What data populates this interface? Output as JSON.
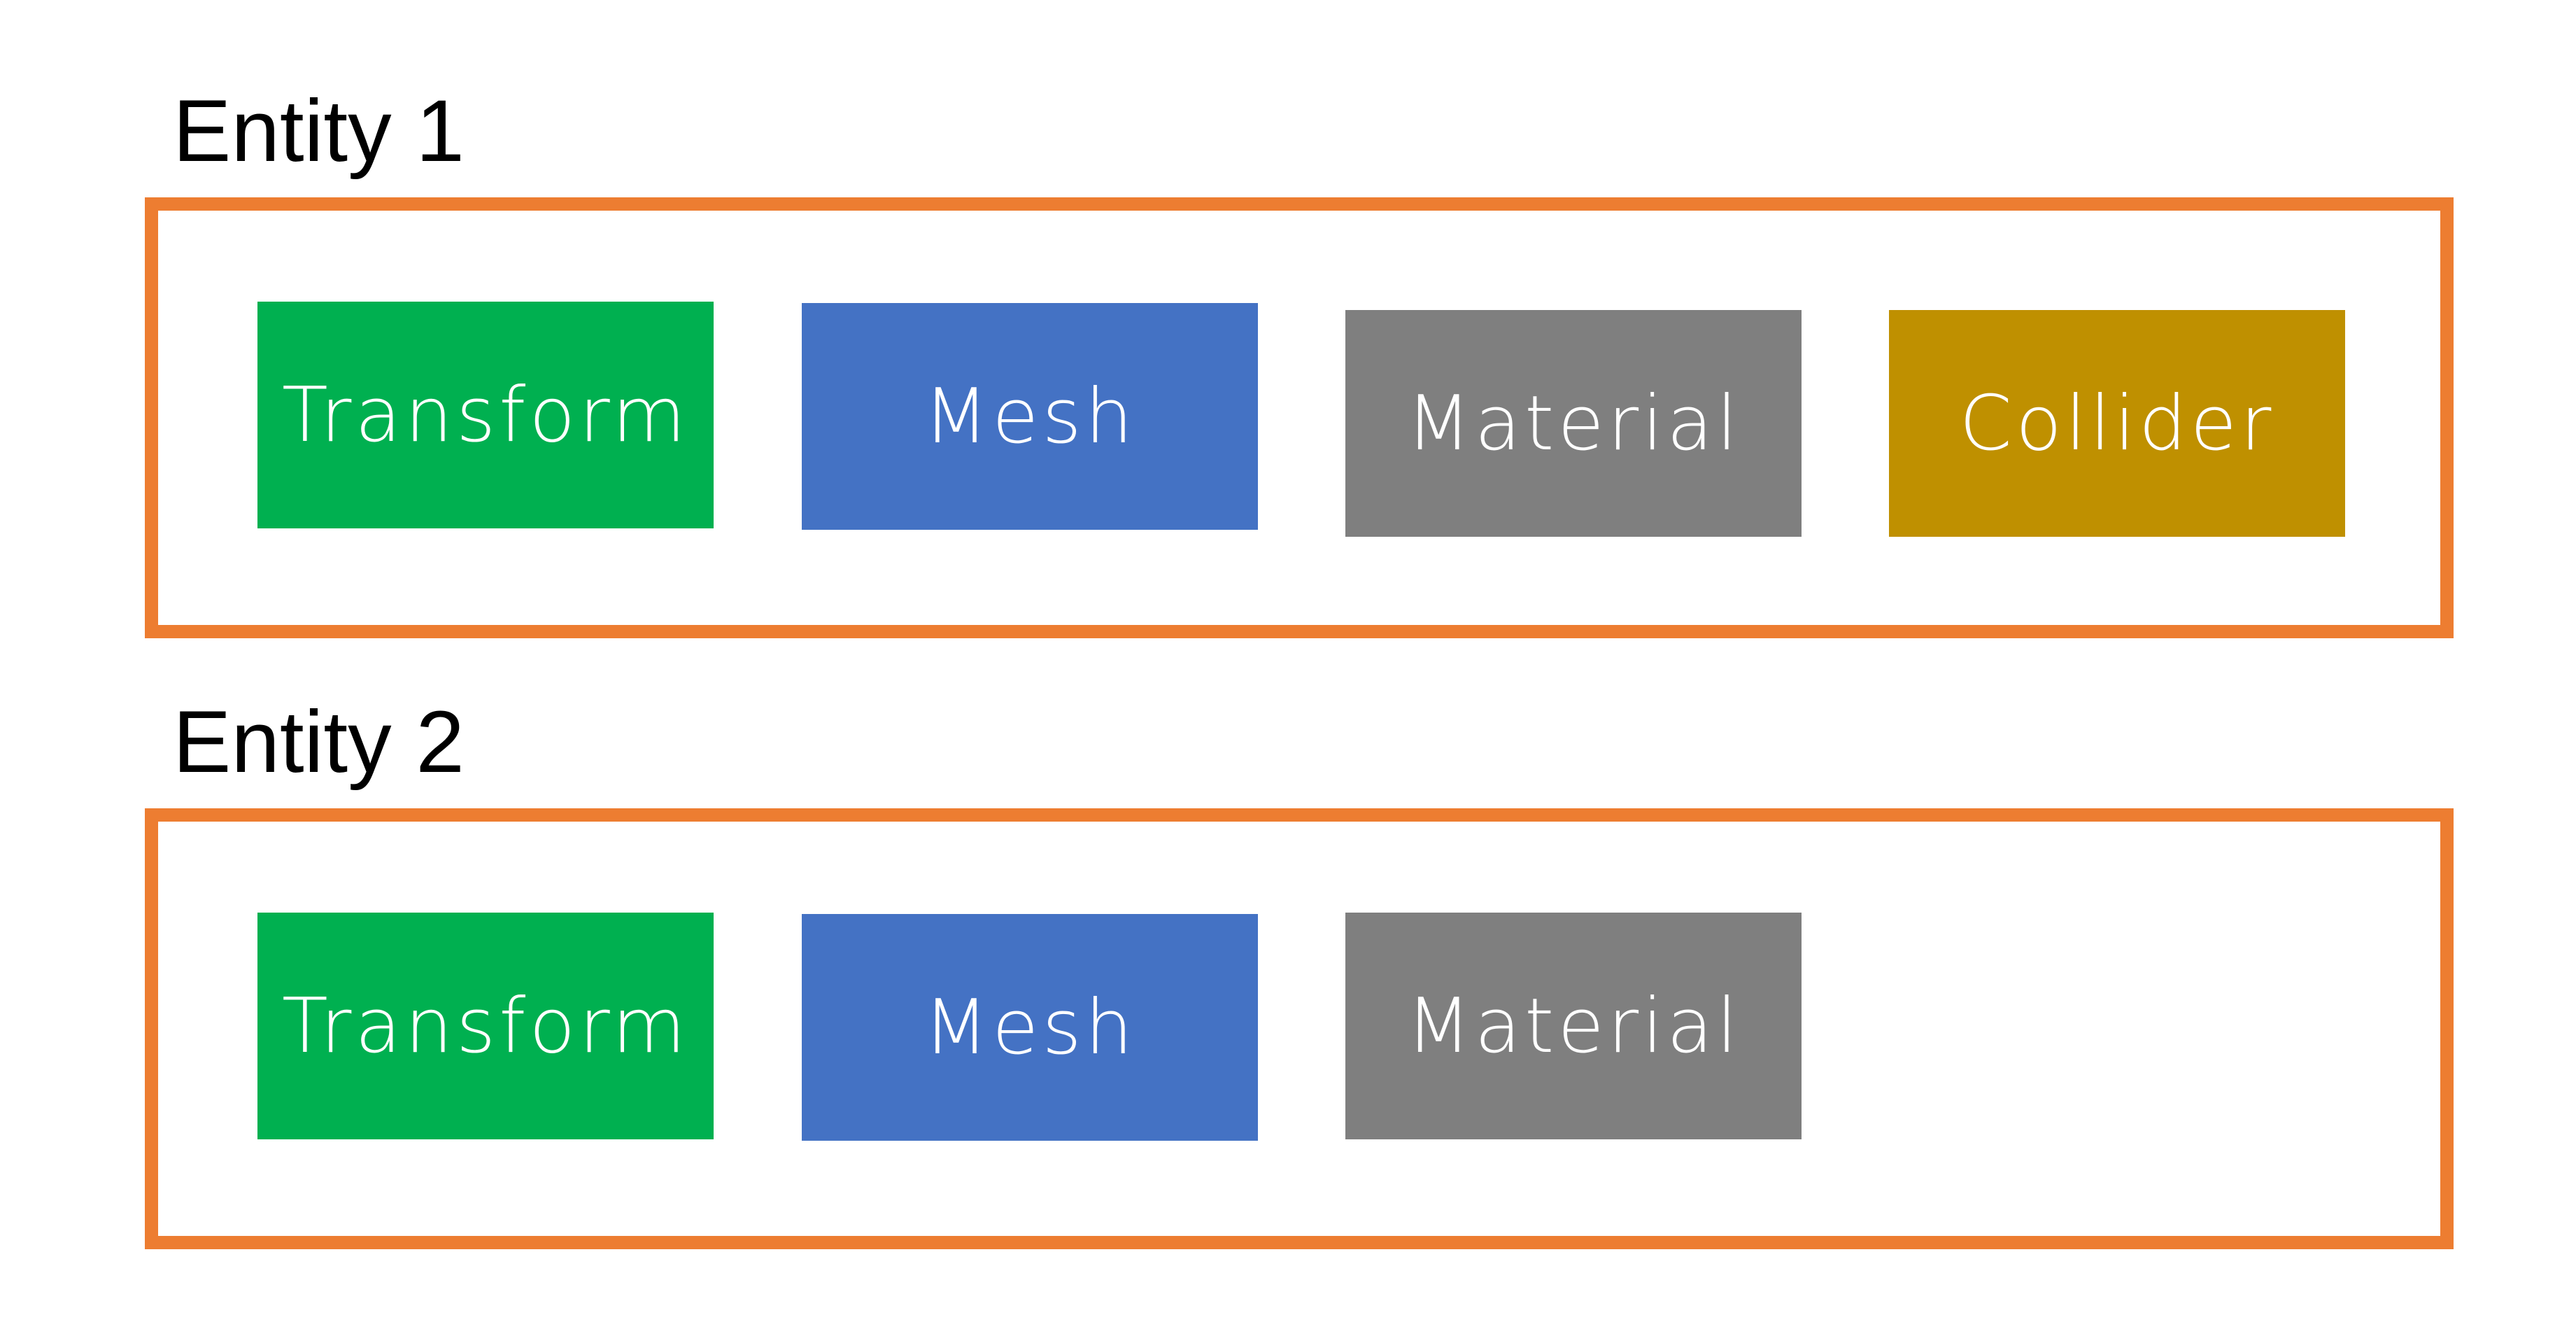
{
  "entities": [
    {
      "title": "Entity 1",
      "components": [
        {
          "label": "Transform",
          "color": "#00B050"
        },
        {
          "label": "Mesh",
          "color": "#4472C4"
        },
        {
          "label": "Material",
          "color": "#7F7F7F"
        },
        {
          "label": "Collider",
          "color": "#BF9000"
        }
      ]
    },
    {
      "title": "Entity 2",
      "components": [
        {
          "label": "Transform",
          "color": "#00B050"
        },
        {
          "label": "Mesh",
          "color": "#4472C4"
        },
        {
          "label": "Material",
          "color": "#7F7F7F"
        }
      ]
    }
  ],
  "colors": {
    "entity_border": "#ED7D31",
    "title_text": "#000000",
    "component_text": "#FFFFFF"
  }
}
